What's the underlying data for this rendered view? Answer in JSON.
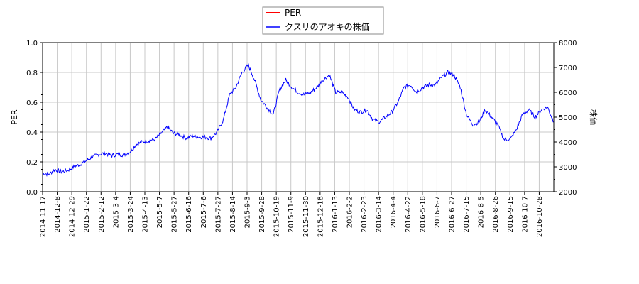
{
  "chart_data": {
    "type": "line",
    "title": "",
    "legend": {
      "placement": "top-center",
      "entries": [
        {
          "label": "PER",
          "color": "#ff0000"
        },
        {
          "label": "クスリのアオキの株価",
          "color": "#0000ff"
        }
      ]
    },
    "y_left": {
      "label": "PER",
      "min": 0.0,
      "max": 1.0,
      "ticks": [
        "0.0",
        "0.2",
        "0.4",
        "0.6",
        "0.8",
        "1.0"
      ]
    },
    "y_right": {
      "label": "株価",
      "min": 2000,
      "max": 8000,
      "ticks": [
        "2000",
        "3000",
        "4000",
        "5000",
        "6000",
        "7000",
        "8000"
      ]
    },
    "x_labels": [
      "2014-11-17",
      "2014-12-8",
      "2014-12-29",
      "2015-1-22",
      "2015-2-12",
      "2015-3-4",
      "2015-3-24",
      "2015-4-13",
      "2015-5-7",
      "2015-5-27",
      "2015-6-16",
      "2015-7-6",
      "2015-7-27",
      "2015-8-14",
      "2015-9-3",
      "2015-9-28",
      "2015-10-19",
      "2015-11-9",
      "2015-11-30",
      "2015-12-18",
      "2016-1-13",
      "2016-2-2",
      "2016-2-23",
      "2016-3-14",
      "2016-4-4",
      "2016-4-22",
      "2016-5-18",
      "2016-6-7",
      "2016-6-27",
      "2016-7-15",
      "2016-8-5",
      "2016-8-26",
      "2016-9-15",
      "2016-10-7",
      "2016-10-28"
    ],
    "grid": true,
    "series": [
      {
        "name": "PER",
        "axis": "left",
        "color": "#ff0000",
        "values": []
      },
      {
        "name": "クスリのアオキの株価",
        "axis": "right",
        "color": "#0000ff",
        "values": [
          2750,
          2700,
          2900,
          2800,
          2850,
          3000,
          3100,
          3250,
          3400,
          3500,
          3550,
          3450,
          3500,
          3480,
          3600,
          3900,
          4000,
          4050,
          4100,
          4350,
          4600,
          4350,
          4300,
          4150,
          4250,
          4200,
          4200,
          4150,
          4400,
          4900,
          5900,
          6200,
          6800,
          7100,
          6500,
          5700,
          5400,
          5100,
          6100,
          6500,
          6200,
          6000,
          5900,
          6000,
          6200,
          6500,
          6700,
          6000,
          6000,
          5800,
          5300,
          5200,
          5300,
          4900,
          4800,
          5000,
          5200,
          5600,
          6200,
          6300,
          6000,
          6200,
          6300,
          6300,
          6600,
          6800,
          6700,
          6200,
          5100,
          4700,
          4800,
          5300,
          5000,
          4700,
          4100,
          4100,
          4500,
          5100,
          5300,
          5000,
          5300,
          5400,
          4800
        ]
      }
    ]
  }
}
